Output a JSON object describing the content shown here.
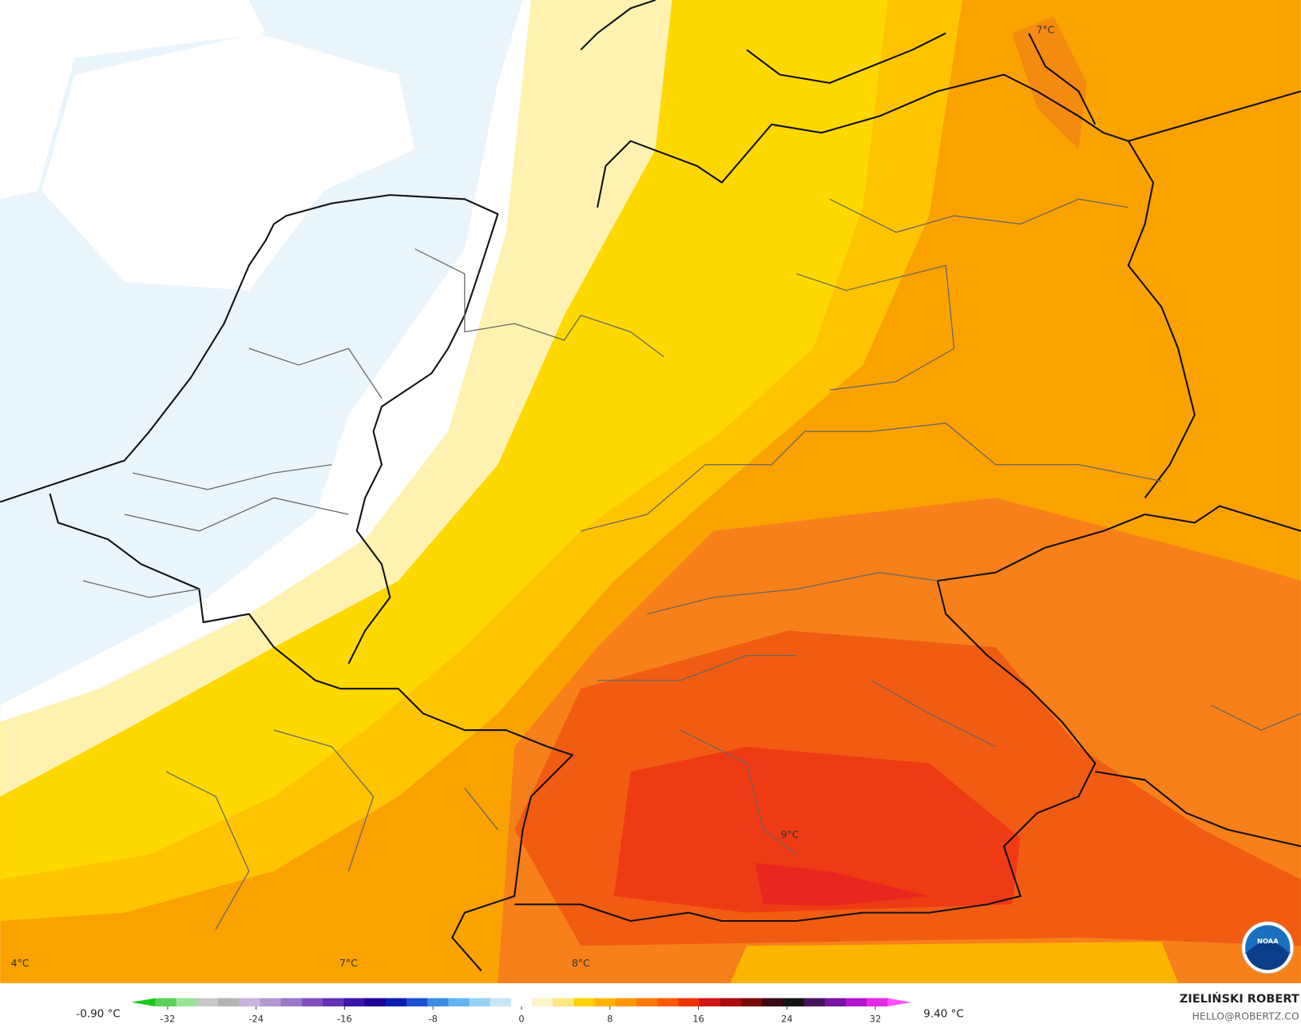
{
  "map_labels": [
    "7°C",
    "9°C",
    "4°C",
    "7°C",
    "8°C"
  ],
  "colorbar": {
    "min_label": "-0.90 °C",
    "max_label": "9.40 °C",
    "lim": [
      -35,
      35
    ],
    "ticks": [
      -32,
      -24,
      -16,
      -8,
      0,
      8,
      16,
      24,
      32
    ],
    "colors": [
      "#19c819",
      "#5ad25a",
      "#9be19b",
      "#c8c8c8",
      "#b4b4b4",
      "#c8b4dc",
      "#b496d2",
      "#9b78c8",
      "#8250be",
      "#6432b4",
      "#3c14aa",
      "#1e0096",
      "#0a1eb4",
      "#1e50d2",
      "#3c8ce6",
      "#64b4f0",
      "#96d2f5",
      "#c8e6fa",
      "#ffffff",
      "#fff5c8",
      "#ffe680",
      "#ffd200",
      "#ffb400",
      "#ff9600",
      "#ff7800",
      "#ff5a00",
      "#f03200",
      "#d21414",
      "#aa0a0a",
      "#780a0a",
      "#3c0a14",
      "#141414",
      "#46145a",
      "#7814a0",
      "#b414d2",
      "#e628e6",
      "#ff50ff"
    ]
  },
  "credit": {
    "name": "ZIELIŃSKI ROBERT",
    "email": "HELLO@ROBERTZ.CO"
  },
  "logo": "NOAA"
}
